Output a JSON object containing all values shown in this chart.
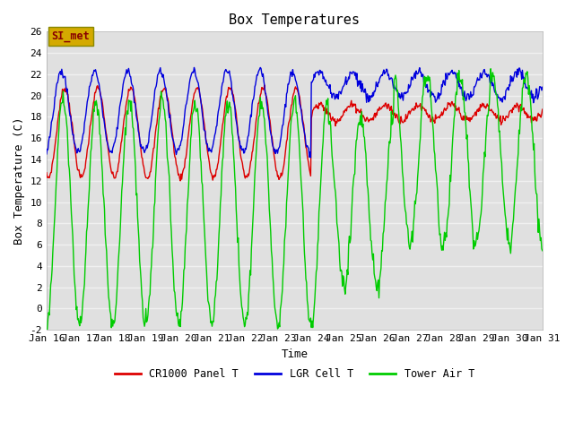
{
  "title": "Box Temperatures",
  "xlabel": "Time",
  "ylabel": "Box Temperature (C)",
  "ylim": [
    -2,
    26
  ],
  "xlim": [
    0,
    15
  ],
  "yticks": [
    -2,
    0,
    2,
    4,
    6,
    8,
    10,
    12,
    14,
    16,
    18,
    20,
    22,
    24,
    26
  ],
  "xtick_labels": [
    "Jan 16",
    "Jan 17",
    "Jan 18",
    "Jan 19",
    "Jan 20",
    "Jan 21",
    "Jan 22",
    "Jan 23",
    "Jan 24",
    "Jan 25",
    "Jan 26",
    "Jan 27",
    "Jan 28",
    "Jan 29",
    "Jan 30",
    "Jan 31"
  ],
  "label_box_text": "SI_met",
  "label_box_color": "#d4aa00",
  "label_box_text_color": "#880000",
  "line_red_color": "#dd0000",
  "line_blue_color": "#0000dd",
  "line_green_color": "#00cc00",
  "legend_labels": [
    "CR1000 Panel T",
    "LGR Cell T",
    "Tower Air T"
  ],
  "fig_bg_color": "#ffffff",
  "plot_bg_color": "#e0e0e0",
  "grid_color": "#f0f0f0",
  "figsize": [
    6.4,
    4.8
  ],
  "dpi": 100
}
